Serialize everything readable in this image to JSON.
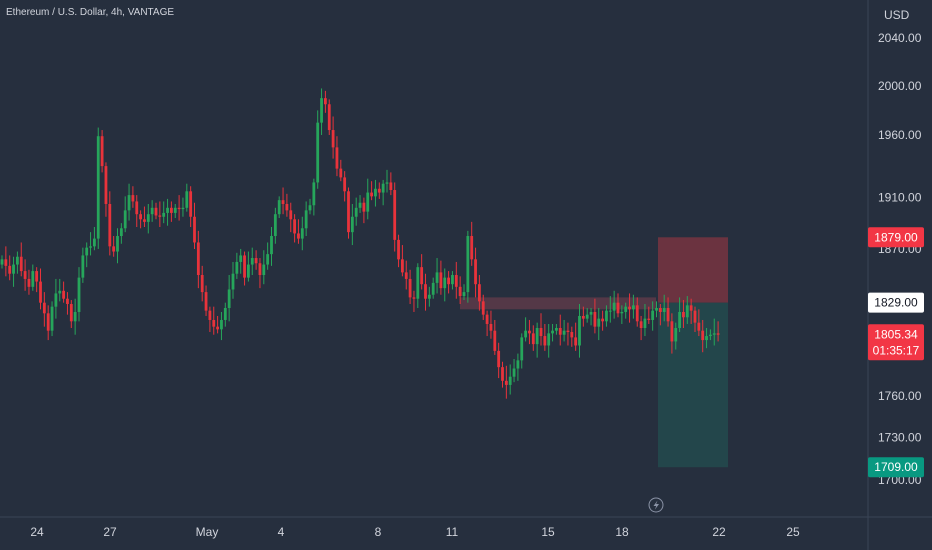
{
  "chart_data": {
    "type": "candlestick",
    "title": "Ethereum / U.S. Dollar, 4h, VANTAGE",
    "y_unit": "USD",
    "y_axis": {
      "scale": "log",
      "tick_values": [
        2040,
        2000,
        1960,
        1910,
        1870,
        1760,
        1730,
        1700
      ]
    },
    "y_tick_labels": [
      "2040.00",
      "2000.00",
      "1960.00",
      "1910.00",
      "1870.00",
      "1760.00",
      "1730.00",
      "1700.00"
    ],
    "x_tick_labels": [
      "24",
      "27",
      "May",
      "4",
      "8",
      "11",
      "15",
      "18",
      "22",
      "25"
    ],
    "price_labels": {
      "stop_loss": "1879.00",
      "entry": "1829.00",
      "last_price": "1805.34",
      "countdown": "01:35:17",
      "take_profit": "1709.00"
    },
    "position": {
      "side": "short",
      "entry": 1829,
      "stop_loss": 1879,
      "take_profit": 1709
    },
    "resistance_zone": {
      "top": 1833,
      "bottom": 1824
    },
    "colors": {
      "background": "#262f3e",
      "up": "#26a65b",
      "down": "#e8333b",
      "stop_loss_zone": "#6b3340",
      "take_profit_zone": "#23464b",
      "stop_loss_label": "#f23645",
      "take_profit_label": "#089981",
      "text": "#d1d4dc"
    },
    "closes": [
      1862,
      1857,
      1851,
      1858,
      1864,
      1853,
      1847,
      1841,
      1853,
      1845,
      1829,
      1821,
      1808,
      1826,
      1836,
      1838,
      1832,
      1828,
      1815,
      1822,
      1848,
      1865,
      1871,
      1872,
      1878,
      1959,
      1935,
      1905,
      1872,
      1868,
      1880,
      1886,
      1900,
      1912,
      1907,
      1897,
      1893,
      1891,
      1897,
      1902,
      1896,
      1895,
      1898,
      1902,
      1898,
      1902,
      1901,
      1902,
      1915,
      1895,
      1875,
      1850,
      1837,
      1823,
      1816,
      1811,
      1809,
      1816,
      1825,
      1839,
      1851,
      1860,
      1865,
      1848,
      1858,
      1863,
      1859,
      1850,
      1858,
      1866,
      1880,
      1897,
      1908,
      1905,
      1900,
      1893,
      1882,
      1878,
      1886,
      1900,
      1904,
      1922,
      1970,
      1990,
      1985,
      1964,
      1950,
      1933,
      1926,
      1915,
      1883,
      1895,
      1902,
      1906,
      1899,
      1914,
      1911,
      1917,
      1914,
      1921,
      1922,
      1916,
      1877,
      1862,
      1852,
      1847,
      1833,
      1832,
      1856,
      1843,
      1832,
      1835,
      1844,
      1852,
      1840,
      1848,
      1843,
      1850,
      1841,
      1834,
      1837,
      1880,
      1862,
      1843,
      1830,
      1820,
      1813,
      1808,
      1793,
      1781,
      1771,
      1768,
      1774,
      1780,
      1786,
      1803,
      1808,
      1806,
      1798,
      1810,
      1804,
      1797,
      1806,
      1808,
      1810,
      1805,
      1808,
      1807,
      1803,
      1797,
      1819,
      1817,
      1820,
      1822,
      1811,
      1817,
      1815,
      1823,
      1823,
      1829,
      1821,
      1822,
      1826,
      1824,
      1827,
      1815,
      1810,
      1817,
      1816,
      1823,
      1825,
      1822,
      1825,
      1815,
      1800,
      1810,
      1822,
      1818,
      1827,
      1823,
      1814,
      1808,
      1801,
      1804,
      1805,
      1806,
      1805
    ]
  }
}
